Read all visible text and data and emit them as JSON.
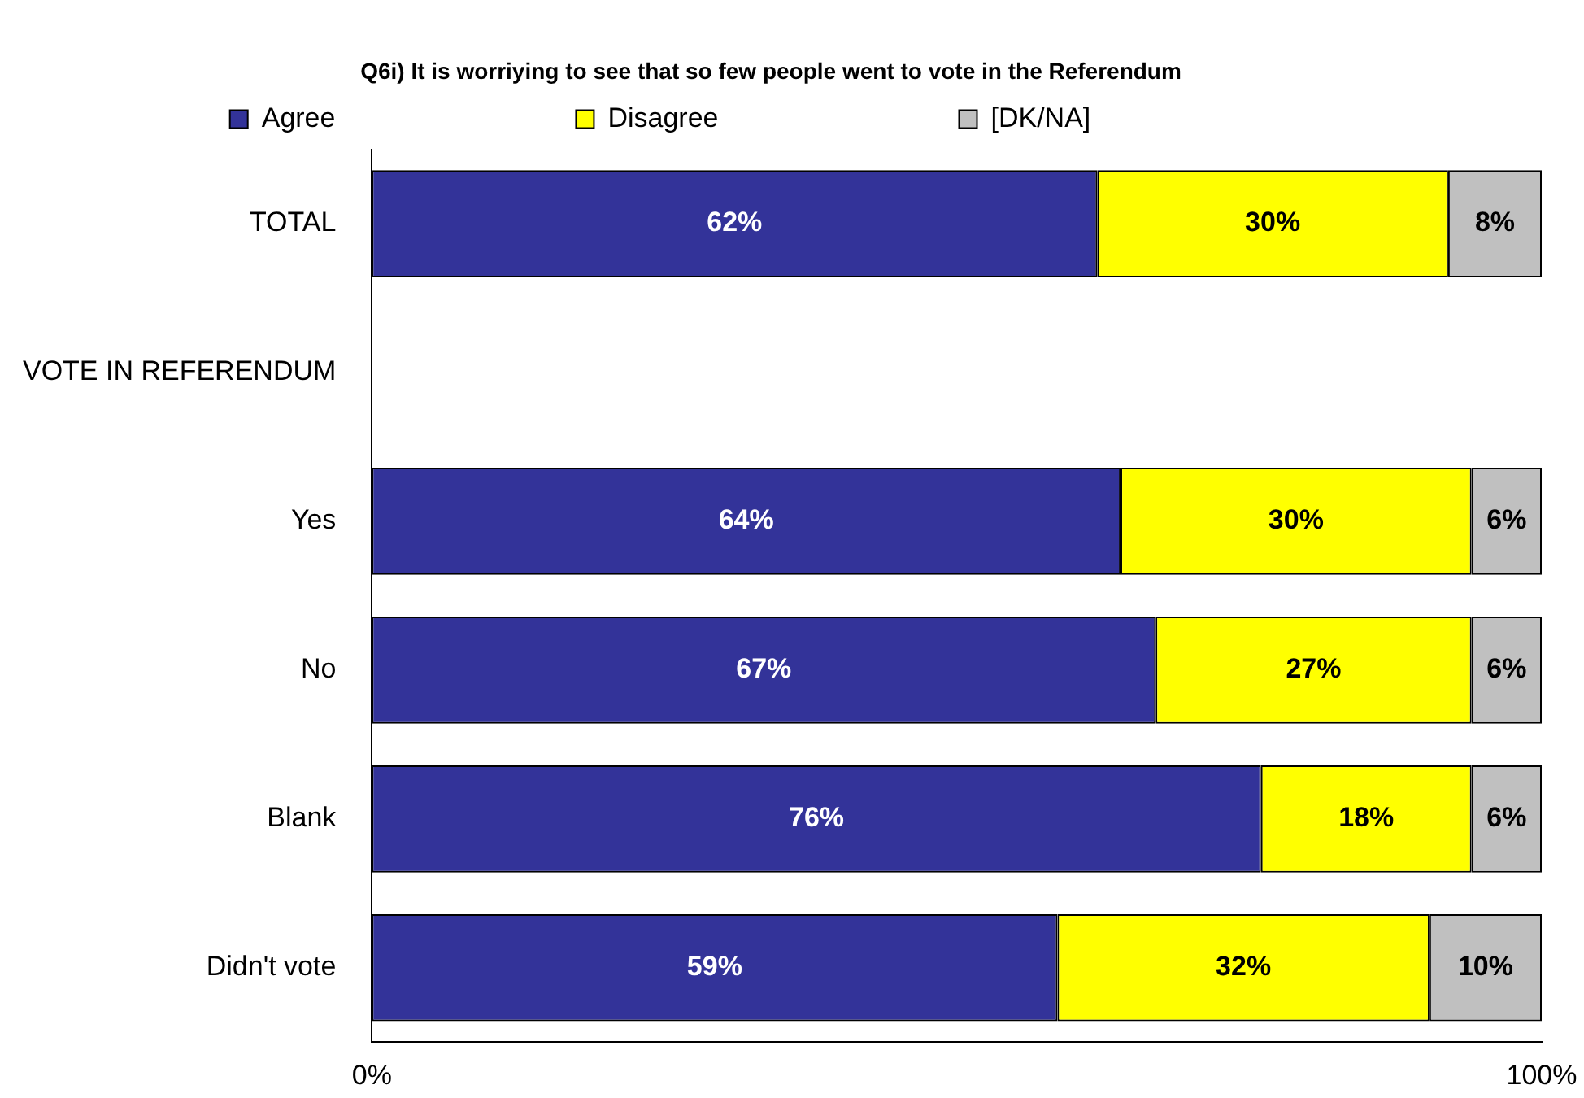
{
  "chart_data": {
    "type": "bar",
    "orientation": "horizontal",
    "stacked": true,
    "title": "Q6i) It is worriying to see that so few people went to vote in the Referendum",
    "categories": [
      "TOTAL",
      "VOTE IN REFERENDUM",
      "Yes",
      "No",
      "Blank",
      "Didn't vote"
    ],
    "series": [
      {
        "name": "Agree",
        "color": "#333399",
        "values": [
          62,
          null,
          64,
          67,
          76,
          58.6
        ],
        "value_labels": [
          "62%",
          null,
          "64%",
          "67%",
          "76%",
          "59%"
        ]
      },
      {
        "name": "Disagree",
        "color": "#ffff00",
        "values": [
          30,
          null,
          30,
          27,
          18,
          31.8
        ],
        "value_labels": [
          "30%",
          null,
          "30%",
          "27%",
          "18%",
          "32%"
        ]
      },
      {
        "name": "[DK/NA]",
        "color": "#c0c0c0",
        "values": [
          8,
          null,
          6,
          6,
          6,
          9.6
        ],
        "value_labels": [
          "8%",
          null,
          "6%",
          "6%",
          "6%",
          "10%"
        ]
      }
    ],
    "xlim": [
      0,
      100
    ],
    "xticks": [
      {
        "value": 0,
        "label": "0%"
      },
      {
        "value": 100,
        "label": "100%"
      }
    ],
    "grid": false,
    "legend": "top"
  }
}
